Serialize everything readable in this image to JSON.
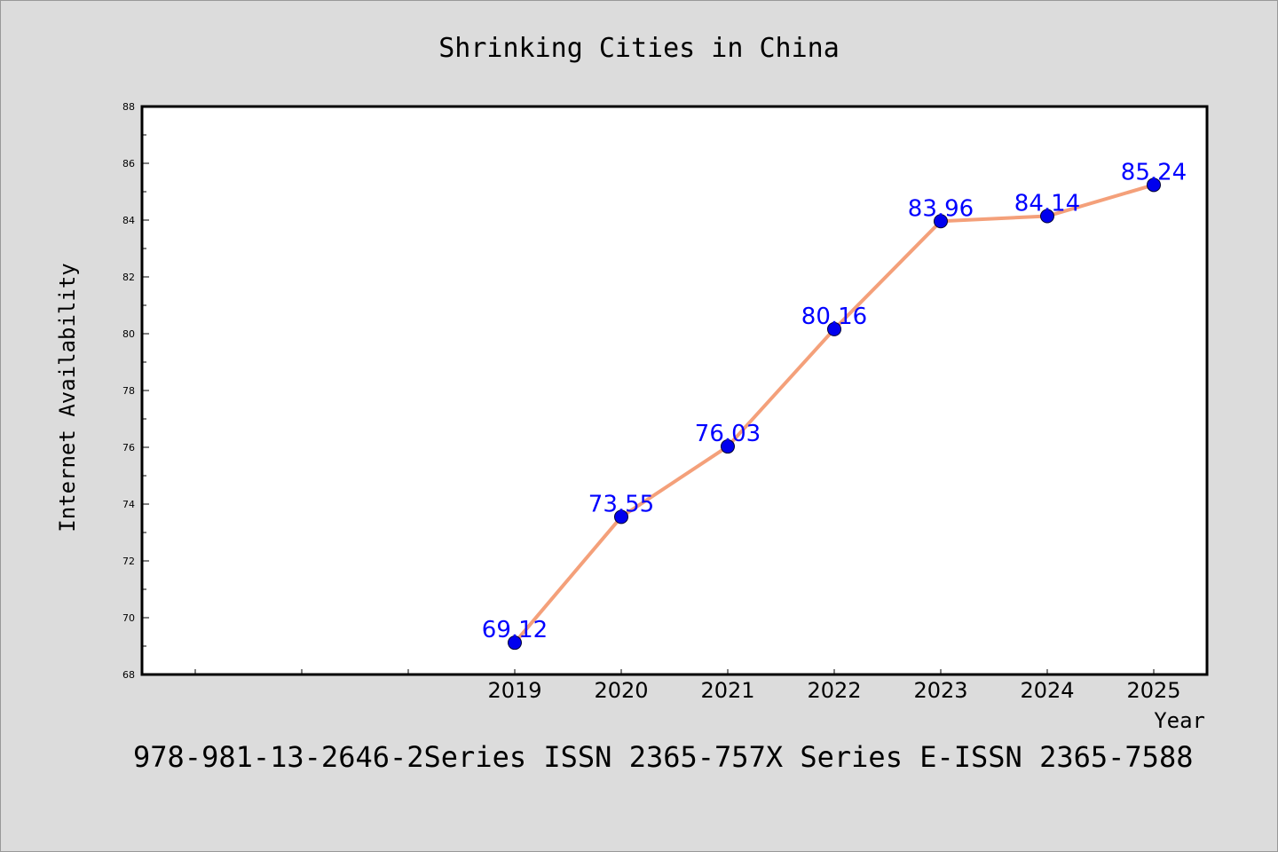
{
  "chart_data": {
    "type": "line",
    "title": "Shrinking Cities in China",
    "xlabel": "Year",
    "ylabel": "Internet Availability",
    "x": [
      "2019",
      "2020",
      "2021",
      "2022",
      "2023",
      "2024",
      "2025"
    ],
    "series": [
      {
        "values": [
          69.12,
          73.55,
          76.03,
          80.16,
          83.96,
          84.14,
          85.24
        ],
        "data_labels": [
          "69.12",
          "73.55",
          "76.03",
          "80.16",
          "83.96",
          "84.14",
          "85.24"
        ]
      }
    ],
    "ylim": [
      68,
      88
    ],
    "y_ticks": [
      "68",
      "70",
      "72",
      "74",
      "76",
      "78",
      "80",
      "82",
      "84",
      "86",
      "88"
    ],
    "grid": false,
    "legend": "none",
    "colors": {
      "line": "#f4a07a",
      "marker": "#0000ee",
      "data_label": "#0000ff",
      "background": "#dcdcdc",
      "plot_area": "#ffffff"
    }
  },
  "footer": "978-981-13-2646-2Series ISSN 2365-757X Series E-ISSN 2365-7588"
}
